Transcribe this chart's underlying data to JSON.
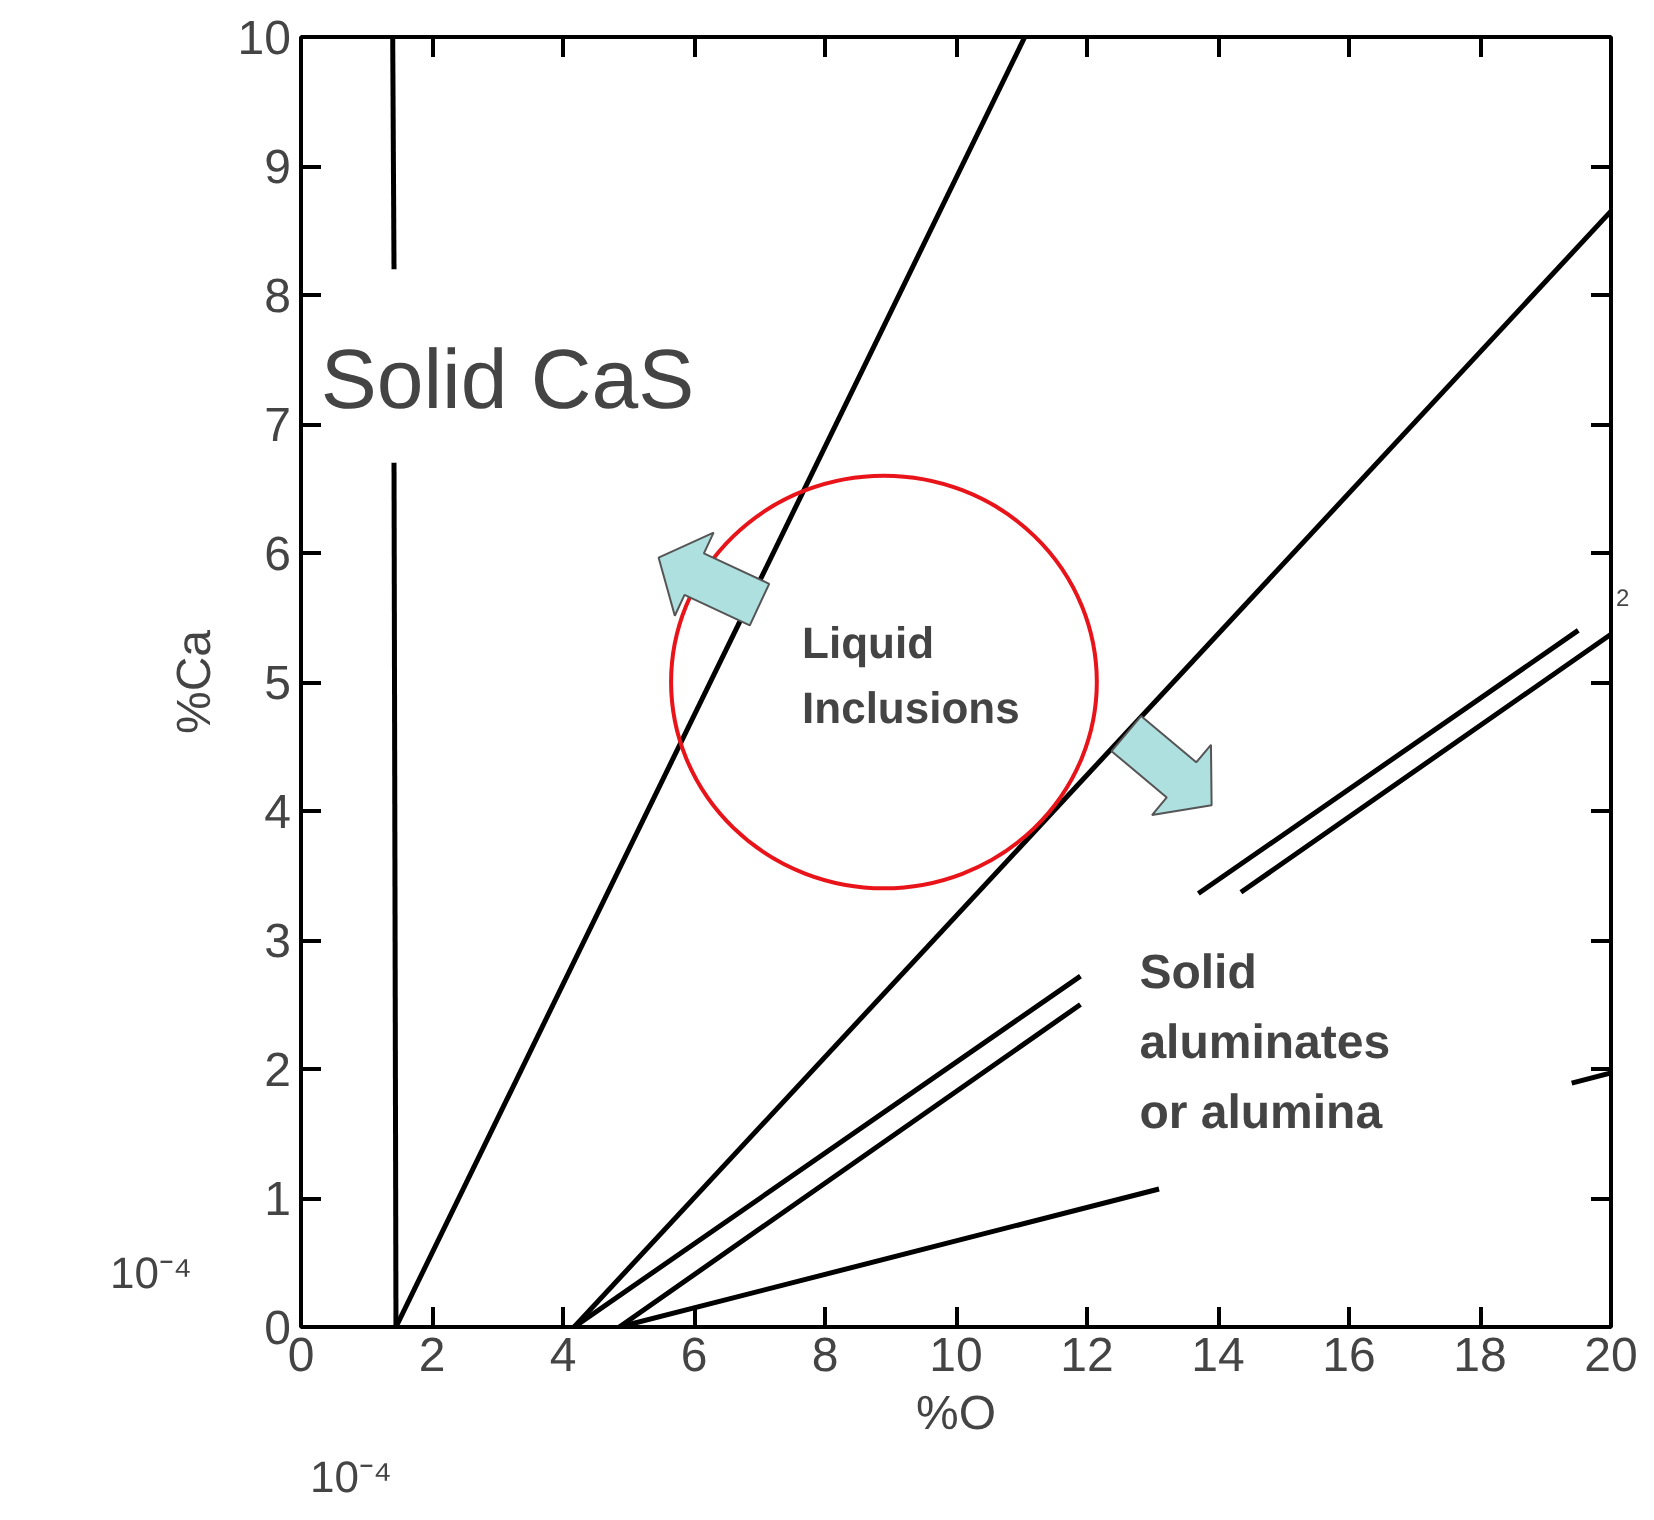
{
  "chart_data": {
    "type": "line",
    "xlabel": "%O",
    "ylabel": "%Ca",
    "xlim": [
      0,
      20
    ],
    "ylim": [
      0,
      10
    ],
    "xticks": [
      0,
      2,
      4,
      6,
      8,
      10,
      12,
      14,
      16,
      18,
      20
    ],
    "yticks": [
      0,
      1,
      2,
      3,
      4,
      5,
      6,
      7,
      8,
      9,
      10
    ],
    "grid": false,
    "series": [
      {
        "color": "#000000",
        "x": [
          1.45,
          1.42
        ],
        "values": [
          0,
          6.7
        ]
      },
      {
        "color": "#000000",
        "x": [
          1.42,
          1.4
        ],
        "values": [
          8.2,
          10
        ]
      },
      {
        "color": "#000000",
        "x": [
          1.45,
          11.05
        ],
        "values": [
          0,
          10
        ]
      },
      {
        "color": "#000000",
        "x": [
          4.17,
          20
        ],
        "values": [
          0,
          8.65
        ]
      },
      {
        "color": "#000000",
        "x": [
          4.17,
          11.9,
          null,
          13.7,
          19.5
        ],
        "values": [
          0,
          2.72,
          null,
          3.36,
          5.4
        ]
      },
      {
        "color": "#000000",
        "x": [
          4.86,
          11.9,
          null,
          14.35,
          20
        ],
        "values": [
          0,
          2.5,
          null,
          3.37,
          5.37
        ]
      },
      {
        "color": "#000000",
        "x": [
          4.86,
          13.1,
          null,
          19.4,
          20
        ],
        "values": [
          0,
          1.07,
          null,
          1.89,
          1.97
        ]
      }
    ],
    "annotations": [
      "Solid CaS",
      "Liquid\nInclusions",
      "Solid\naluminates\nor alumina",
      "10⁻⁴",
      "10⁻⁴",
      "2"
    ]
  }
}
